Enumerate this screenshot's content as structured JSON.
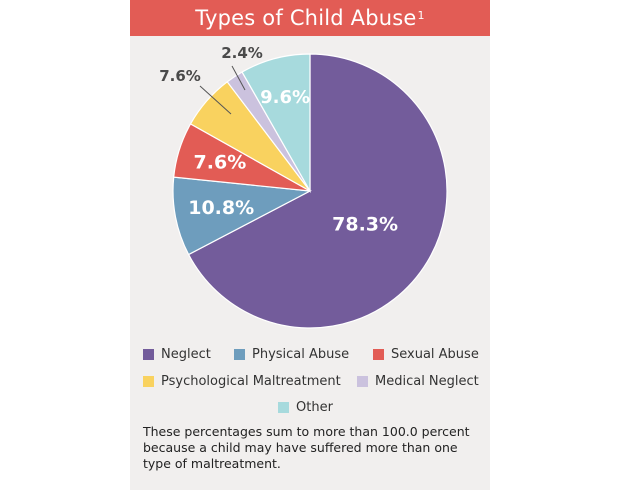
{
  "title": "Types of Child Abuse",
  "title_sup": "1",
  "chart_data": {
    "type": "pie",
    "title": "Types of Child Abuse",
    "slices": [
      {
        "name": "Neglect",
        "value": 78.3,
        "label": "78.3%",
        "color": "#735c9b"
      },
      {
        "name": "Physical Abuse",
        "value": 10.8,
        "label": "10.8%",
        "color": "#6e9dbd"
      },
      {
        "name": "Sexual Abuse",
        "value": 7.6,
        "label": "7.6%",
        "color": "#e25c55"
      },
      {
        "name": "Psychological Maltreatment",
        "value": 7.6,
        "label": "7.6%",
        "color": "#f9d25f"
      },
      {
        "name": "Medical Neglect",
        "value": 2.4,
        "label": "2.4%",
        "color": "#cbc2de"
      },
      {
        "name": "Other",
        "value": 9.6,
        "label": "9.6%",
        "color": "#a7dadd"
      }
    ],
    "legend_placement": "bottom"
  },
  "legend": [
    {
      "label": "Neglect",
      "color": "#735c9b"
    },
    {
      "label": "Physical Abuse",
      "color": "#6e9dbd"
    },
    {
      "label": "Sexual Abuse",
      "color": "#e25c55"
    },
    {
      "label": "Psychological Maltreatment",
      "color": "#f9d25f"
    },
    {
      "label": "Medical Neglect",
      "color": "#cbc2de"
    },
    {
      "label": "Other",
      "color": "#a7dadd"
    }
  ],
  "note": "These percentages sum to more than 100.0 percent because a child may have suffered more than one type of maltreatment."
}
